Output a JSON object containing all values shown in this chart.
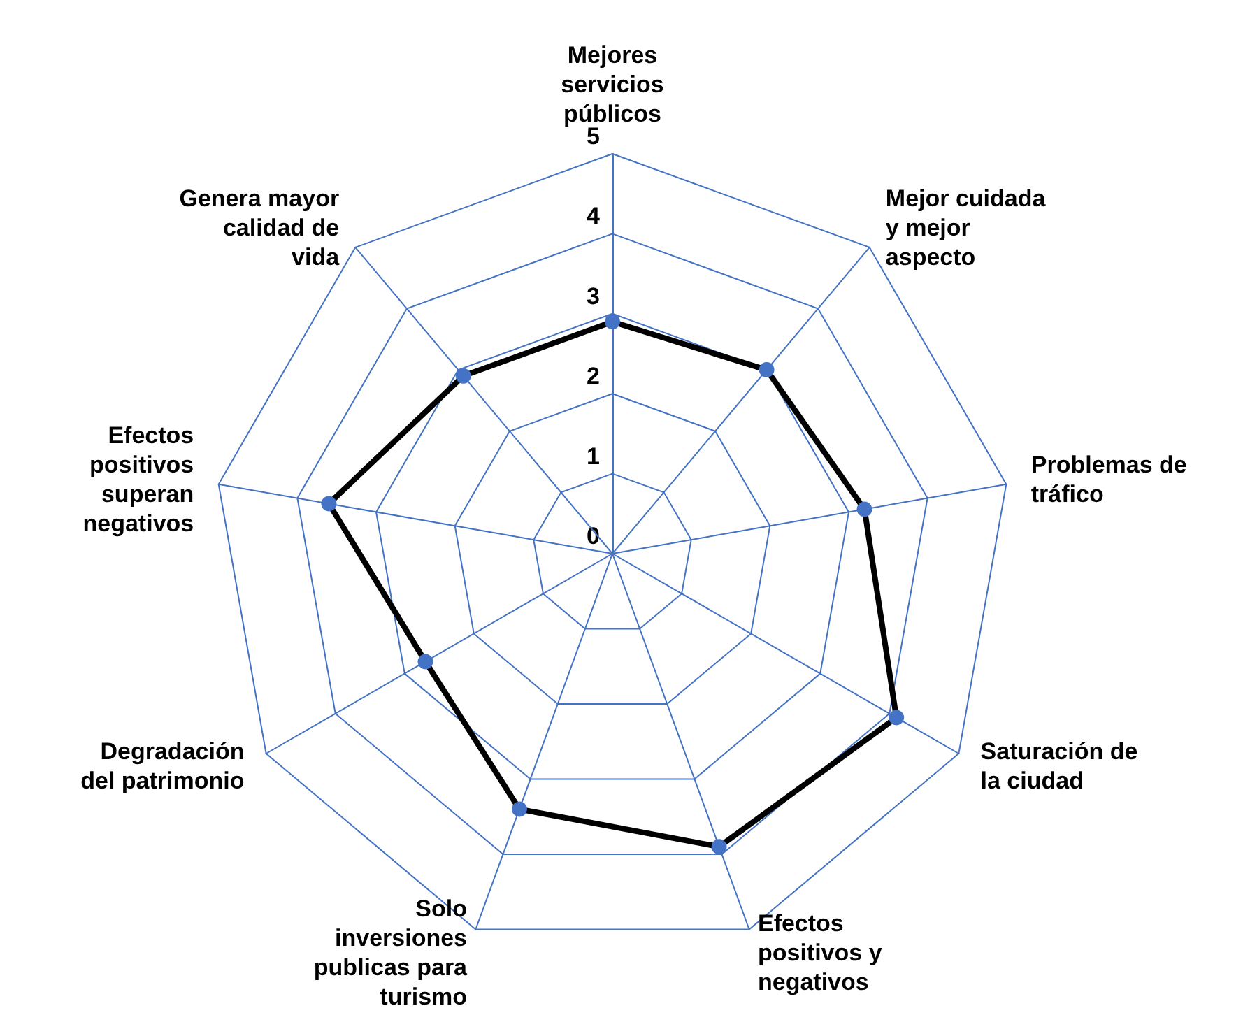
{
  "chart_data": {
    "type": "radar",
    "categories": [
      "Mejores servicios públicos",
      "Mejor cuidada y mejor aspecto",
      "Problemas de tráfico",
      "Saturación de la ciudad",
      "Efectos positivos y negativos",
      "Solo inversiones publicas para turismo",
      "Degradación del patrimonio",
      "Efectos positivos superan negativos",
      "Genera mayor calidad de vida"
    ],
    "series": [
      {
        "color": "#000000",
        "values": [
          2.9,
          3.0,
          3.2,
          4.1,
          3.9,
          3.4,
          2.7,
          3.6,
          2.9
        ]
      }
    ],
    "marker": "circle",
    "ylim": [
      0,
      5
    ],
    "yticks": [
      0,
      1,
      2,
      3,
      4,
      5
    ],
    "grid": true
  }
}
